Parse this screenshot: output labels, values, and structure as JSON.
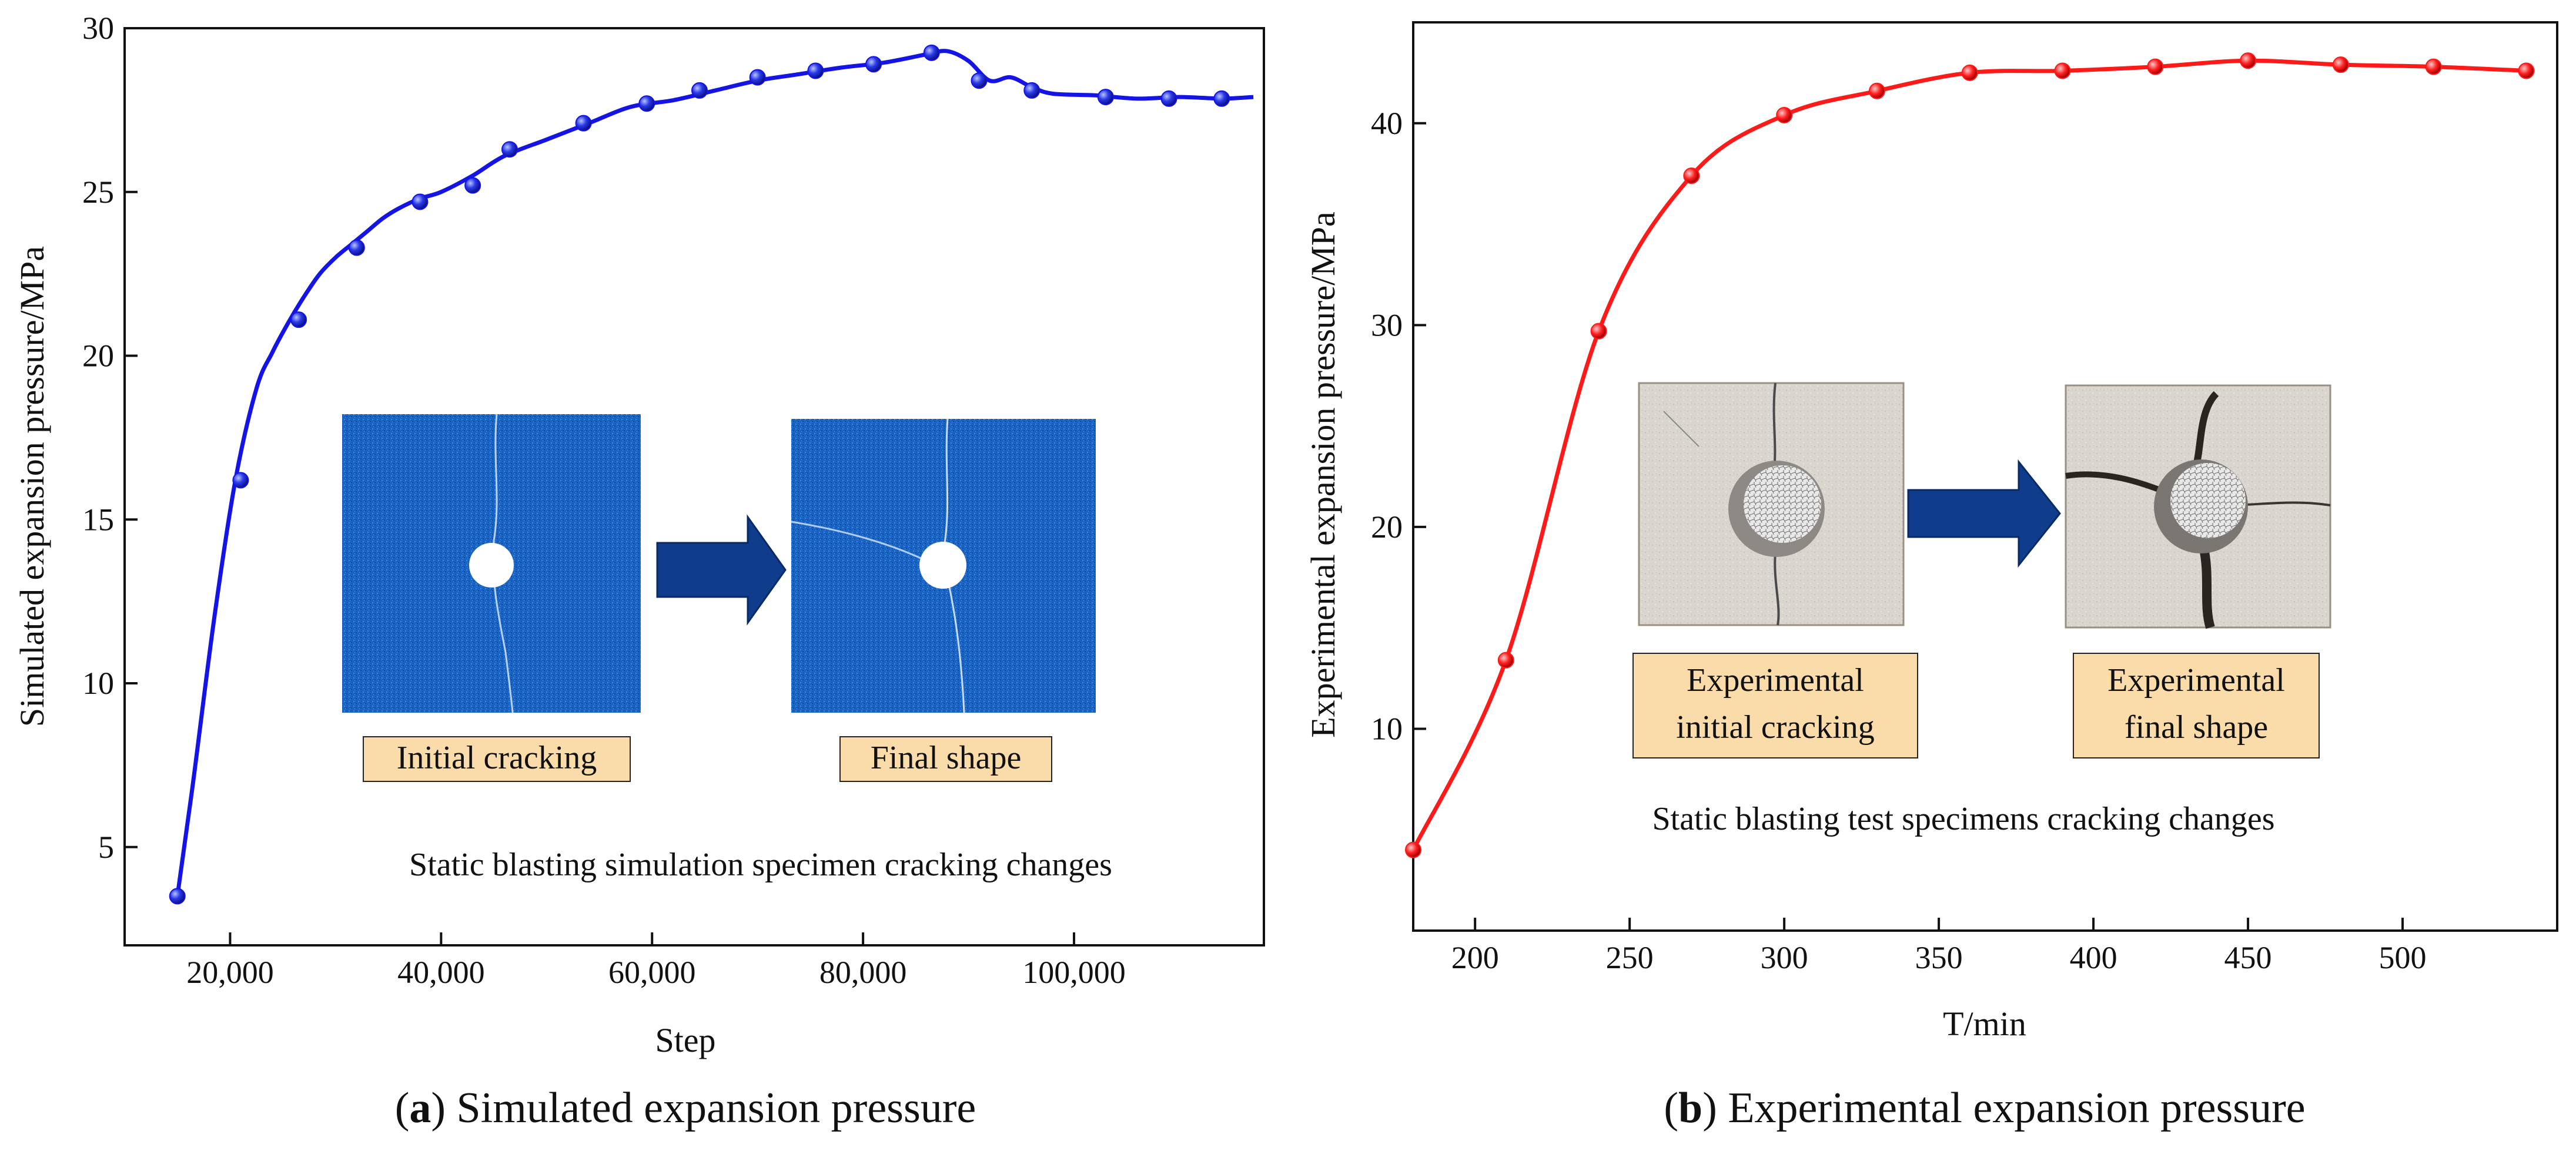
{
  "chart_data": [
    {
      "type": "line",
      "title": "",
      "xlabel": "Step",
      "ylabel": "Simulated expansion pressure/MPa",
      "xlim": [
        10000,
        118000
      ],
      "ylim": [
        2,
        30
      ],
      "xticks": [
        20000,
        40000,
        60000,
        80000,
        100000
      ],
      "xtick_labels": [
        "20,000",
        "40,000",
        "60,000",
        "80,000",
        "100,000"
      ],
      "yticks": [
        5,
        10,
        15,
        20,
        25,
        30
      ],
      "ytick_labels": [
        "5",
        "10",
        "15",
        "20",
        "25",
        "30"
      ],
      "grid": false,
      "line_color": "#1414e6",
      "series": [
        {
          "name": "Simulated expansion pressure",
          "x": [
            15000,
            16500,
            18500,
            20500,
            22500,
            24000,
            25500,
            27000,
            28500,
            30000,
            31500,
            33000,
            34500,
            36000,
            38000,
            40000,
            43000,
            46000,
            50000,
            54000,
            58000,
            62000,
            66000,
            70000,
            74000,
            78000,
            82000,
            86000,
            88000,
            90000,
            92000,
            94000,
            96000,
            98000,
            102000,
            106000,
            110000,
            114000,
            117000
          ],
          "y": [
            3.5,
            7.0,
            12.0,
            16.2,
            19.0,
            20.1,
            21.0,
            21.8,
            22.5,
            23.0,
            23.4,
            23.8,
            24.2,
            24.5,
            24.8,
            25.0,
            25.5,
            26.1,
            26.6,
            27.1,
            27.6,
            27.8,
            28.1,
            28.4,
            28.6,
            28.8,
            28.95,
            29.2,
            29.3,
            29.0,
            28.4,
            28.5,
            28.2,
            28.0,
            27.95,
            27.85,
            27.9,
            27.85,
            27.9
          ]
        }
      ],
      "markers": {
        "x": [
          15000,
          21000,
          26500,
          32000,
          38000,
          43000,
          46500,
          53500,
          59500,
          64500,
          70000,
          75500,
          81000,
          86500,
          91000,
          96000,
          103000,
          109000,
          114000
        ],
        "y": [
          3.5,
          16.2,
          21.1,
          23.3,
          24.7,
          25.2,
          26.3,
          27.1,
          27.7,
          28.1,
          28.5,
          28.7,
          28.9,
          29.25,
          28.4,
          28.1,
          27.9,
          27.85,
          27.85
        ]
      },
      "inset": {
        "label_initial": "Initial cracking",
        "label_final": "Final shape",
        "caption": "Static blasting simulation specimen cracking changes"
      },
      "caption_bold": "a",
      "caption_text": "Simulated expansion pressure"
    },
    {
      "type": "line",
      "title": "",
      "xlabel": "T/min",
      "ylabel": "Experimental expansion pressure/MPa",
      "xlim": [
        180,
        550
      ],
      "ylim": [
        0,
        45
      ],
      "xticks": [
        200,
        250,
        300,
        350,
        400,
        450,
        500
      ],
      "xtick_labels": [
        "200",
        "250",
        "300",
        "350",
        "400",
        "450",
        "500"
      ],
      "yticks": [
        10,
        20,
        30,
        40
      ],
      "ytick_labels": [
        "10",
        "20",
        "30",
        "40"
      ],
      "grid": false,
      "line_color": "#ff1a1a",
      "series": [
        {
          "name": "Experimental expansion pressure",
          "x": [
            180,
            210,
            240,
            270,
            300,
            330,
            360,
            390,
            420,
            450,
            480,
            510,
            540
          ],
          "y": [
            4.0,
            13.4,
            29.7,
            37.4,
            40.4,
            41.6,
            42.5,
            42.6,
            42.8,
            43.1,
            42.9,
            42.8,
            42.6
          ]
        }
      ],
      "inset": {
        "label_initial_line1": "Experimental",
        "label_initial_line2": "initial cracking",
        "label_final_line1": "Experimental",
        "label_final_line2": "final shape",
        "caption": "Static blasting test specimens cracking changes"
      },
      "caption_bold": "b",
      "caption_text": "Experimental expansion pressure"
    }
  ]
}
